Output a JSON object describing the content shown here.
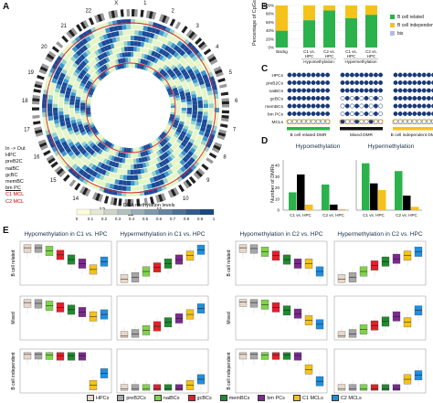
{
  "panel_letters": {
    "a": "A",
    "b": "B",
    "c": "C",
    "d": "D",
    "e": "E"
  },
  "panelA": {
    "legend_lines": [
      "In -> Out",
      "HPC",
      "preB2C",
      "naiBC",
      "gcBC",
      "memBC",
      "bm PC",
      "C1 MCL",
      "C2 MCL"
    ],
    "colorbar_title": "DNA methylation levels",
    "colorbar_ticks": [
      "0",
      "0.1",
      "0.2",
      "0.3",
      "0.4",
      "0.5",
      "0.6",
      "0.7",
      "0.8",
      "0.9",
      "1"
    ],
    "chromosomes": [
      "1",
      "2",
      "3",
      "4",
      "5",
      "6",
      "7",
      "8",
      "9",
      "10",
      "11",
      "12",
      "13",
      "14",
      "15",
      "16",
      "17",
      "18",
      "19",
      "20",
      "21",
      "22",
      "X"
    ]
  },
  "panelB": {
    "chart_data": {
      "type": "bar",
      "ylabel": "Percentage of CpGs",
      "yticks": [
        "0%",
        "20%",
        "40%",
        "60%",
        "80%",
        "100%"
      ],
      "ylim": [
        0,
        100
      ],
      "categories": [
        "Backg",
        "C1 vs. HPC",
        "C2 vs. HPC",
        "C1 vs. HPC",
        "C2 vs. HPC"
      ],
      "group_labels": [
        "Hypomethylation",
        "Hypermethylation"
      ],
      "series": [
        {
          "name": "B cell related",
          "color": "#2bb24c",
          "values": [
            40,
            65,
            88,
            70,
            78
          ]
        },
        {
          "name": "B cell independent",
          "color": "#f5c21b",
          "values": [
            60,
            35,
            12,
            30,
            22
          ]
        },
        {
          "name": "bis",
          "color": "#b8b8e8",
          "values": [
            0,
            0,
            0,
            0,
            0
          ]
        }
      ]
    }
  },
  "panelC": {
    "row_labels": [
      "HPCs",
      "preB2Cs",
      "naiBCs",
      "gcBCs",
      "memBCs",
      "bm PCs",
      "MCLs"
    ],
    "group_labels": [
      "B cell related DMR",
      "Mixed DMR",
      "B cell independent DMR"
    ]
  },
  "panelD": {
    "chart_data": {
      "ylabel": "Number of DMRs",
      "panels": [
        {
          "type": "bar",
          "title": "Hypomethylation",
          "categories": [
            "C1 vs. HPC",
            "C2 vs. HPC"
          ],
          "series": [
            {
              "color": "#2bb24c",
              "values": [
                16,
                23
              ]
            },
            {
              "color": "#000000",
              "values": [
                32,
                5
              ]
            },
            {
              "color": "#f5c21b",
              "values": [
                5,
                1
              ]
            }
          ]
        },
        {
          "type": "bar",
          "title": "Hypermethylation",
          "categories": [
            "C1 vs. HPC",
            "C2 vs. HPC"
          ],
          "series": [
            {
              "color": "#2bb24c",
              "values": [
                42,
                35
              ]
            },
            {
              "color": "#000000",
              "values": [
                24,
                13
              ]
            },
            {
              "color": "#f5c21b",
              "values": [
                18,
                3
              ]
            }
          ]
        }
      ]
    }
  },
  "panelE": {
    "titles": [
      "Hypomethylation in C1 vs. HPC",
      "Hypermethylation in C1 vs. HPC",
      "Hypomethylation in C2 vs. HPC",
      "Hypermethylation in C2 vs. HPC"
    ],
    "row_labels": [
      "B cell related",
      "Mixed",
      "B cell independent"
    ],
    "legend": [
      {
        "name": "HPCs",
        "color": "#e6d7c9"
      },
      {
        "name": "preB2Cs",
        "color": "#a6a6a6"
      },
      {
        "name": "naiBCs",
        "color": "#7fd34a"
      },
      {
        "name": "gcBCs",
        "color": "#e0212b"
      },
      {
        "name": "memBCs",
        "color": "#1f8a2f"
      },
      {
        "name": "bm PCs",
        "color": "#7a2a8f"
      },
      {
        "name": "C1 MCLs",
        "color": "#f5c21b"
      },
      {
        "name": "C2 MCLs",
        "color": "#1f8fe0"
      }
    ],
    "box_medians": {
      "hypo_c1": [
        [
          0.9,
          0.9,
          0.82,
          0.72,
          0.6,
          0.5,
          0.35,
          0.55
        ],
        [
          0.9,
          0.88,
          0.82,
          0.78,
          0.72,
          0.66,
          0.55,
          0.6
        ],
        [
          0.93,
          0.93,
          0.92,
          0.9,
          0.9,
          0.9,
          0.15,
          0.45
        ]
      ],
      "hyper_c1": [
        [
          0.1,
          0.15,
          0.3,
          0.4,
          0.5,
          0.6,
          0.7,
          0.85
        ],
        [
          0.05,
          0.1,
          0.2,
          0.3,
          0.4,
          0.5,
          0.6,
          0.75
        ],
        [
          0.05,
          0.05,
          0.05,
          0.05,
          0.05,
          0.05,
          0.15,
          0.3
        ]
      ],
      "hypo_c2": [
        [
          0.9,
          0.88,
          0.8,
          0.7,
          0.6,
          0.5,
          0.5,
          0.3
        ],
        [
          0.92,
          0.9,
          0.85,
          0.78,
          0.7,
          0.62,
          0.45,
          0.35
        ],
        [
          0.93,
          0.93,
          0.92,
          0.92,
          0.92,
          0.9,
          0.55,
          0.25
        ]
      ],
      "hyper_c2": [
        [
          0.1,
          0.15,
          0.3,
          0.45,
          0.55,
          0.62,
          0.7,
          0.8
        ],
        [
          0.05,
          0.1,
          0.22,
          0.32,
          0.42,
          0.55,
          0.4,
          0.7
        ],
        [
          0.05,
          0.05,
          0.05,
          0.05,
          0.05,
          0.05,
          0.3,
          0.4
        ]
      ]
    }
  }
}
